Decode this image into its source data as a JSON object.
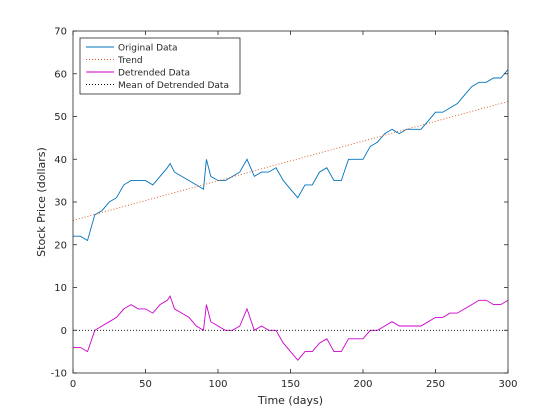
{
  "chart_data": {
    "type": "line",
    "title": "",
    "xlabel": "Time (days)",
    "ylabel": "Stock Price (dollars)",
    "xlim": [
      0,
      300
    ],
    "ylim": [
      -10,
      70
    ],
    "xticks": [
      0,
      50,
      100,
      150,
      200,
      250,
      300
    ],
    "yticks": [
      -10,
      0,
      10,
      20,
      30,
      40,
      50,
      60,
      70
    ],
    "grid": false,
    "legend_position": "top-left",
    "series": [
      {
        "name": "Original Data",
        "style": "solid",
        "color": "#0072BD",
        "x": [
          0,
          5,
          10,
          15,
          20,
          25,
          30,
          35,
          40,
          45,
          50,
          55,
          60,
          65,
          67,
          70,
          75,
          80,
          85,
          90,
          92,
          95,
          100,
          105,
          110,
          115,
          120,
          125,
          130,
          135,
          140,
          145,
          150,
          155,
          160,
          165,
          170,
          175,
          180,
          185,
          190,
          195,
          200,
          205,
          210,
          215,
          220,
          225,
          230,
          235,
          240,
          245,
          250,
          255,
          260,
          265,
          270,
          275,
          280,
          285,
          290,
          295,
          300
        ],
        "y": [
          22,
          22,
          21,
          27,
          28,
          30,
          31,
          34,
          35,
          35,
          35,
          34,
          36,
          38,
          39,
          37,
          36,
          35,
          34,
          33,
          40,
          36,
          35,
          35,
          36,
          37,
          40,
          36,
          37,
          37,
          38,
          35,
          33,
          31,
          34,
          34,
          37,
          38,
          35,
          35,
          40,
          40,
          40,
          43,
          44,
          46,
          47,
          46,
          47,
          47,
          47,
          49,
          51,
          51,
          52,
          53,
          55,
          57,
          58,
          58,
          59,
          59,
          61
        ]
      },
      {
        "name": "Trend",
        "style": "dotted",
        "color": "#D95319",
        "x": [
          0,
          300
        ],
        "y": [
          25.7,
          53.5
        ]
      },
      {
        "name": "Detrended Data",
        "style": "solid",
        "color": "#CC00CC",
        "x": [
          0,
          5,
          10,
          15,
          20,
          25,
          30,
          35,
          40,
          45,
          50,
          55,
          60,
          65,
          67,
          70,
          75,
          80,
          85,
          90,
          92,
          95,
          100,
          105,
          110,
          115,
          120,
          125,
          130,
          135,
          140,
          145,
          150,
          155,
          160,
          165,
          170,
          175,
          180,
          185,
          190,
          195,
          200,
          205,
          210,
          215,
          220,
          225,
          230,
          235,
          240,
          245,
          250,
          255,
          260,
          265,
          270,
          275,
          280,
          285,
          290,
          295,
          300
        ],
        "y": [
          -4,
          -4,
          -5,
          0,
          1,
          2,
          3,
          5,
          6,
          5,
          5,
          4,
          6,
          7,
          8,
          5,
          4,
          3,
          1,
          0,
          6,
          2,
          1,
          0,
          0,
          1,
          5,
          0,
          1,
          0,
          0,
          -3,
          -5,
          -7,
          -5,
          -5,
          -3,
          -2,
          -5,
          -5,
          -2,
          -2,
          -2,
          0,
          0,
          1,
          2,
          1,
          1,
          1,
          1,
          2,
          3,
          3,
          4,
          4,
          5,
          6,
          7,
          7,
          6,
          6,
          7
        ]
      },
      {
        "name": "Mean of Detrended Data",
        "style": "dotted",
        "color": "#000000",
        "x": [
          0,
          300
        ],
        "y": [
          0,
          0
        ]
      }
    ]
  }
}
